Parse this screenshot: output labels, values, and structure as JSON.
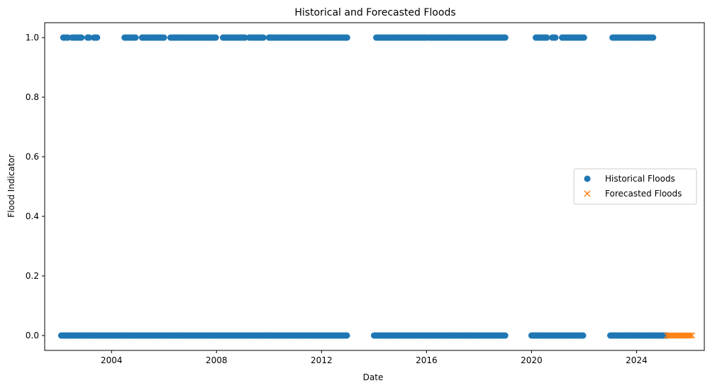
{
  "chart_data": {
    "type": "scatter",
    "title": "Historical and Forecasted Floods",
    "xlabel": "Date",
    "ylabel": "Flood Indicator",
    "x_type": "date",
    "xlim": [
      "2001-06-15",
      "2026-08-01"
    ],
    "ylim": [
      -0.05,
      1.05
    ],
    "x_ticks": [
      "2004",
      "2008",
      "2012",
      "2016",
      "2020",
      "2024"
    ],
    "y_ticks": [
      "0.0",
      "0.2",
      "0.4",
      "0.6",
      "0.8",
      "1.0"
    ],
    "legend_position": "center-right",
    "grid": false,
    "colors": {
      "historical": "#1f77b4",
      "forecast": "#ff7f0e"
    },
    "series": [
      {
        "name": "Historical Floods",
        "marker": "o",
        "segments": [
          {
            "start": "2002-02-01",
            "end": "2012-12-31",
            "y": 0
          },
          {
            "start": "2014-01-01",
            "end": "2018-12-31",
            "y": 0
          },
          {
            "start": "2020-01-01",
            "end": "2021-12-31",
            "y": 0
          },
          {
            "start": "2023-01-01",
            "end": "2025-02-28",
            "y": 0
          },
          {
            "start": "2002-03-01",
            "end": "2002-05-15",
            "y": 1
          },
          {
            "start": "2002-07-01",
            "end": "2002-11-15",
            "y": 1
          },
          {
            "start": "2003-02-01",
            "end": "2003-03-15",
            "y": 1
          },
          {
            "start": "2003-05-01",
            "end": "2003-07-01",
            "y": 1
          },
          {
            "start": "2004-07-01",
            "end": "2004-12-15",
            "y": 1
          },
          {
            "start": "2005-03-01",
            "end": "2005-12-31",
            "y": 1
          },
          {
            "start": "2006-04-01",
            "end": "2007-12-31",
            "y": 1
          },
          {
            "start": "2008-04-01",
            "end": "2009-01-31",
            "y": 1
          },
          {
            "start": "2009-04-01",
            "end": "2009-10-31",
            "y": 1
          },
          {
            "start": "2010-01-01",
            "end": "2012-12-31",
            "y": 1
          },
          {
            "start": "2014-02-01",
            "end": "2015-12-31",
            "y": 1
          },
          {
            "start": "2016-02-01",
            "end": "2018-12-31",
            "y": 1
          },
          {
            "start": "2020-03-01",
            "end": "2020-07-31",
            "y": 1
          },
          {
            "start": "2020-10-15",
            "end": "2020-12-15",
            "y": 1
          },
          {
            "start": "2021-03-01",
            "end": "2021-12-31",
            "y": 1
          },
          {
            "start": "2023-02-01",
            "end": "2024-08-31",
            "y": 1
          }
        ]
      },
      {
        "name": "Forecasted Floods",
        "marker": "x",
        "segments": [
          {
            "start": "2025-03-01",
            "end": "2026-02-28",
            "y": 0
          }
        ]
      }
    ]
  }
}
